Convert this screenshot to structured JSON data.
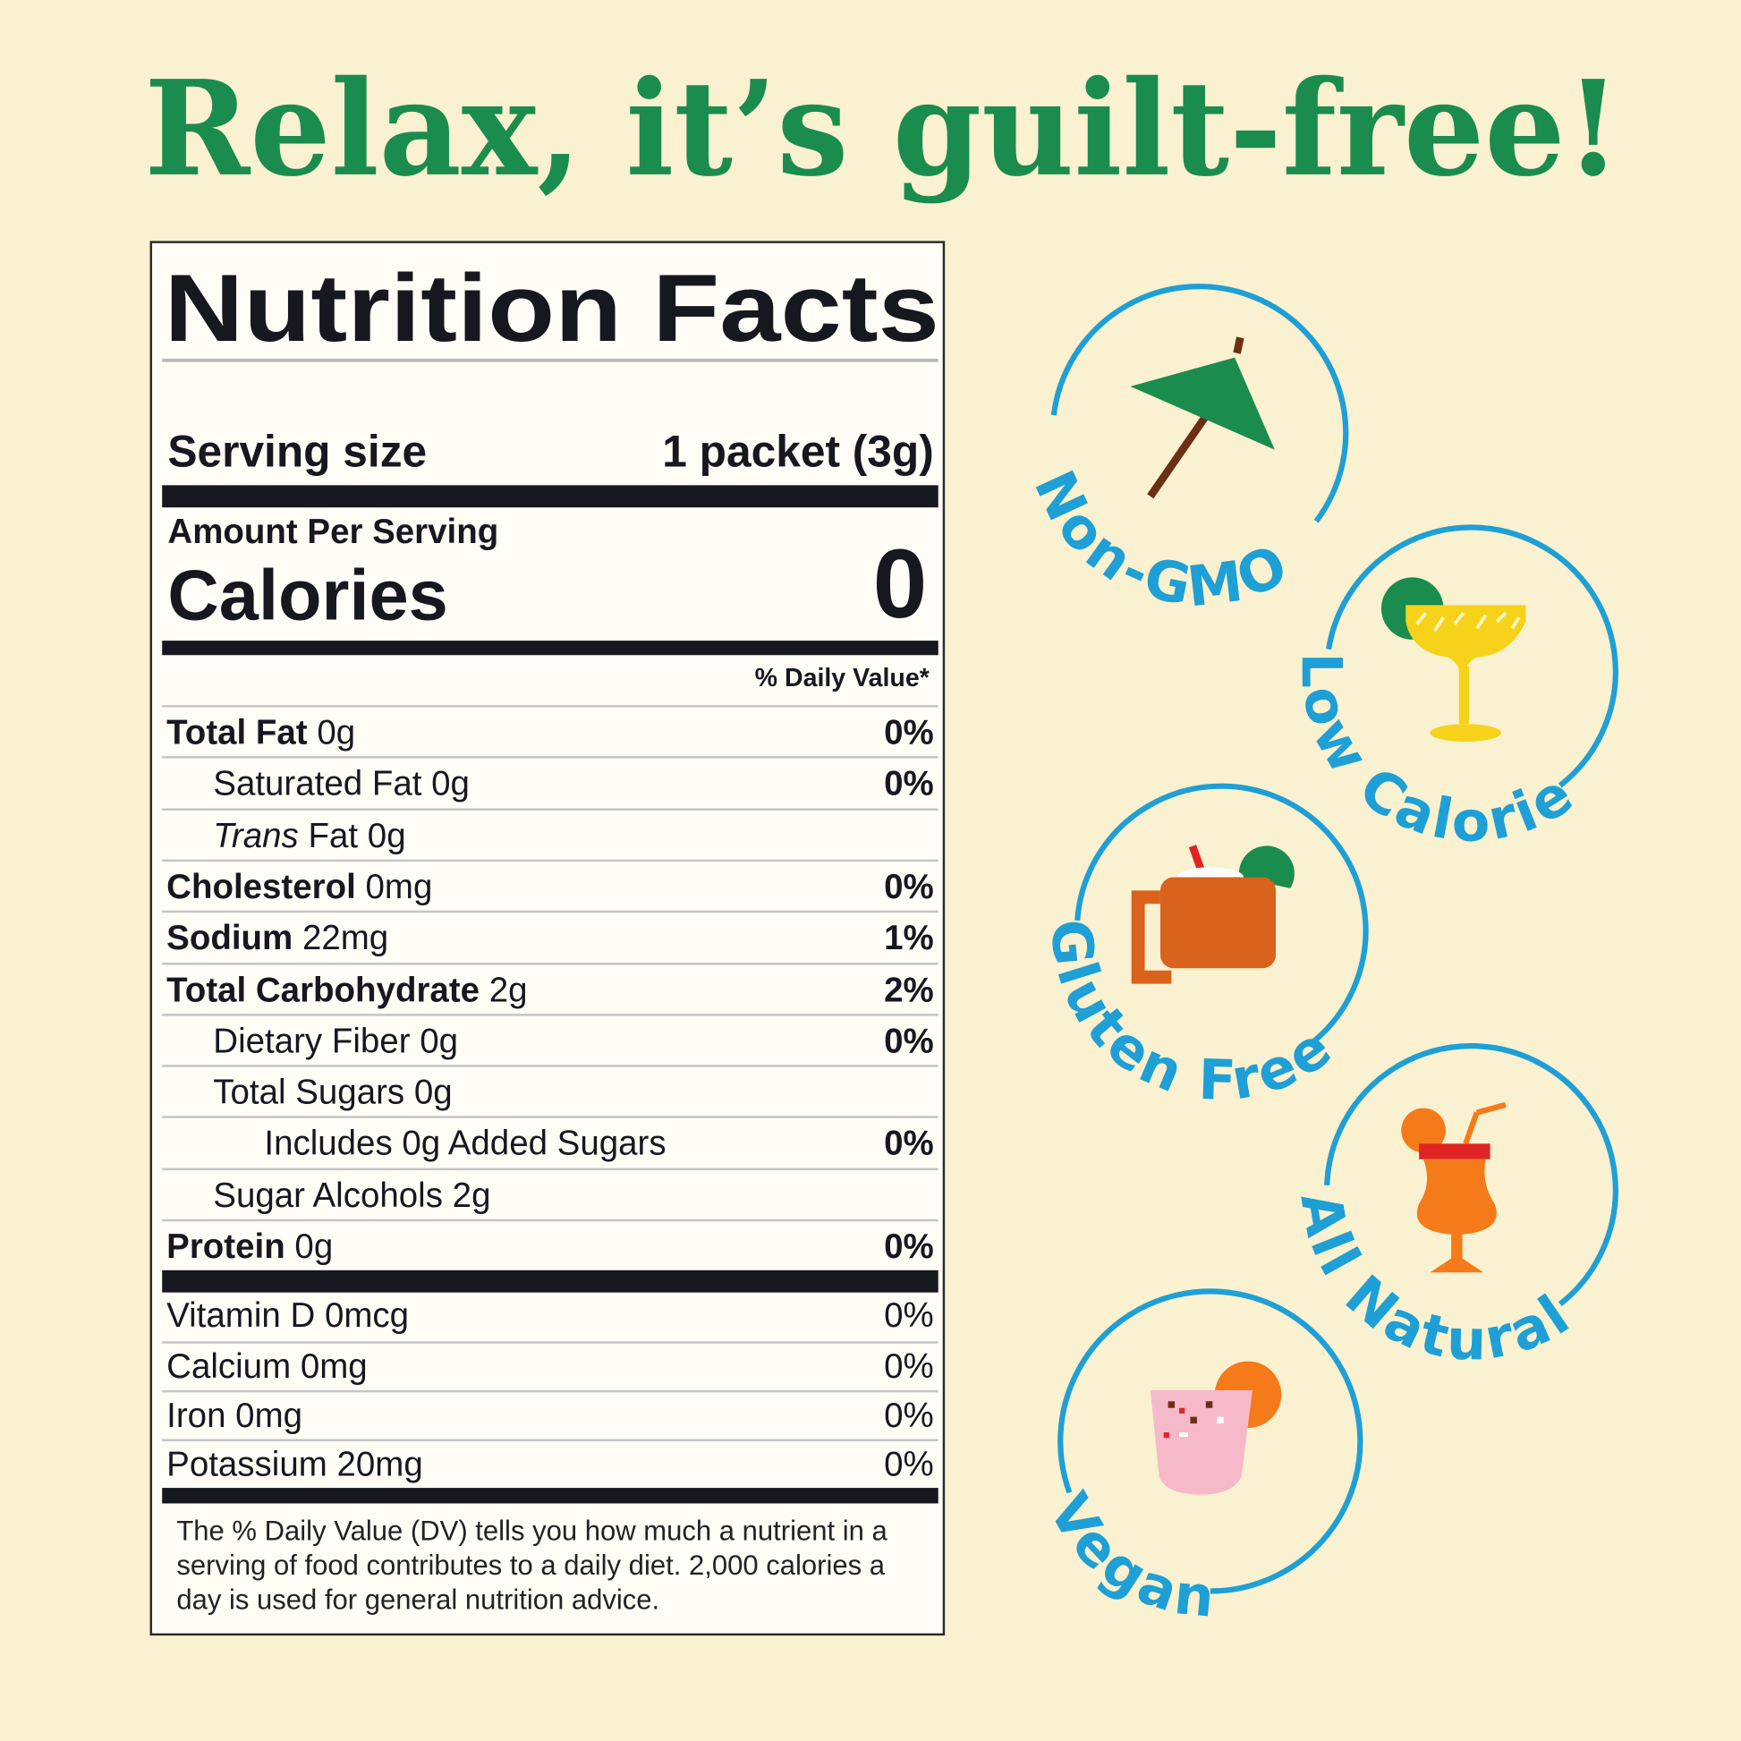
{
  "headline": "Relax, it’s guilt-free!",
  "colors": {
    "background": "#f9f1cf",
    "headline": "#1a8c4e",
    "badge": "#1e9fd6",
    "label_ink": "#17171f"
  },
  "nutrition": {
    "title": "Nutrition Facts",
    "serving_size_label": "Serving size",
    "serving_size_value": "1 packet (3g)",
    "amount_per_serving": "Amount Per Serving",
    "calories_label": "Calories",
    "calories_value": "0",
    "daily_value_header": "% Daily Value*",
    "rows": [
      {
        "name": "Total Fat",
        "amount": "0g",
        "dv": "0%",
        "level": 0
      },
      {
        "name": "Saturated Fat",
        "amount": "0g",
        "dv": "0%",
        "level": 1
      },
      {
        "italic": "Trans",
        "name": "Fat",
        "amount": "0g",
        "dv": "",
        "level": 1
      },
      {
        "name": "Cholesterol",
        "amount": "0mg",
        "dv": "0%",
        "level": 0
      },
      {
        "name": "Sodium",
        "amount": "22mg",
        "dv": "1%",
        "level": 0
      },
      {
        "name": "Total Carbohydrate",
        "amount": "2g",
        "dv": "2%",
        "level": 0
      },
      {
        "name": "Dietary Fiber",
        "amount": "0g",
        "dv": "0%",
        "level": 1
      },
      {
        "name": "Total Sugars",
        "amount": "0g",
        "dv": "",
        "level": 1
      },
      {
        "name": "Includes 0g Added Sugars",
        "amount": "",
        "dv": "0%",
        "level": 2
      },
      {
        "name": "Sugar Alcohols",
        "amount": "2g",
        "dv": "",
        "level": 1
      },
      {
        "name": "Protein",
        "amount": "0g",
        "dv": "0%",
        "level": 0
      }
    ],
    "vitamins": [
      {
        "name": "Vitamin D",
        "amount": "0mcg",
        "dv": "0%"
      },
      {
        "name": "Calcium",
        "amount": "0mg",
        "dv": "0%"
      },
      {
        "name": "Iron",
        "amount": "0mg",
        "dv": "0%"
      },
      {
        "name": "Potassium",
        "amount": "20mg",
        "dv": "0%"
      }
    ],
    "footnote_lines": [
      "The % Daily Value (DV) tells you how much a nutrient in a",
      "serving of food contributes to a daily diet. 2,000 calories a",
      "day is used for general nutrition advice."
    ]
  },
  "badges": [
    {
      "label": "Non-GMO",
      "icon": "cocktail-umbrella-icon"
    },
    {
      "label": "Low Calorie",
      "icon": "margarita-glass-icon"
    },
    {
      "label": "Gluten Free",
      "icon": "mule-mug-icon"
    },
    {
      "label": "All Natural",
      "icon": "hurricane-glass-icon"
    },
    {
      "label": "Vegan",
      "icon": "pink-cocktail-icon"
    }
  ]
}
